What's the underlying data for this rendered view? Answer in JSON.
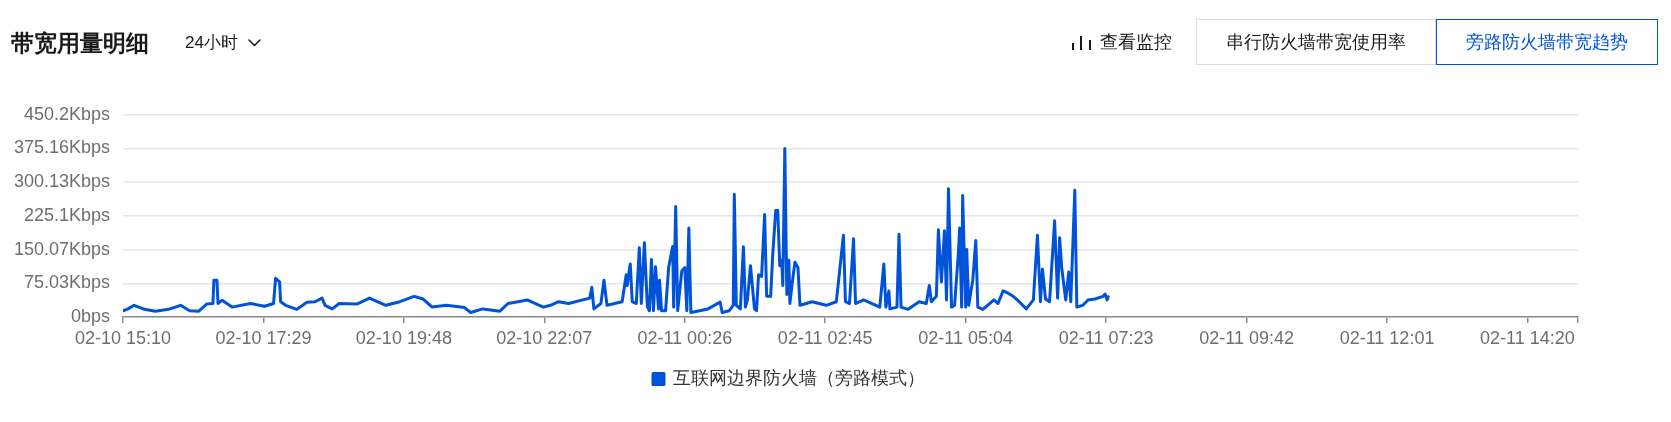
{
  "chart_data": {
    "type": "line",
    "title": "带宽用量明细",
    "annotations": [
      "24小时",
      "查看监控",
      "串行防火墙带宽使用率",
      "旁路防火墙带宽趋势"
    ],
    "x": [
      "--02-10T15:10",
      "--02-10T15:14",
      "--02-10T15:21",
      "--02-10T15:30",
      "--02-10T15:42",
      "--02-10T15:55",
      "--02-10T16:07",
      "--02-10T16:16",
      "--02-10T16:25",
      "--02-10T16:33",
      "--02-10T16:39",
      "--02-10T16:40",
      "--02-10T16:43",
      "--02-10T16:44",
      "--02-10T16:48",
      "--02-10T16:58",
      "--02-10T17:16",
      "--02-10T17:30",
      "--02-10T17:39",
      "--02-10T17:41",
      "--02-10T17:43",
      "--02-10T17:45",
      "--02-10T17:46",
      "--02-10T17:51",
      "--02-10T18:02",
      "--02-10T18:12",
      "--02-10T18:20",
      "--02-10T18:27",
      "--02-10T18:30",
      "--02-10T18:37",
      "--02-10T18:44",
      "--02-10T19:02",
      "--02-10T19:14",
      "--02-10T19:30",
      "--02-10T19:44",
      "--02-10T19:58",
      "--02-10T20:07",
      "--02-10T20:16",
      "--02-10T20:30",
      "--02-10T20:48",
      "--02-10T20:54",
      "--02-10T21:06",
      "--02-10T21:23",
      "--02-10T21:31",
      "--02-10T21:41",
      "--02-10T21:50",
      "--02-10T22:06",
      "--02-10T22:13",
      "--02-10T22:21",
      "--02-10T22:31",
      "--02-10T22:45",
      "--02-10T22:52",
      "--02-10T22:54",
      "--02-10T22:56",
      "--02-10T23:03",
      "--02-10T23:06",
      "--02-10T23:09",
      "--02-10T23:24",
      "--02-10T23:28",
      "--02-10T23:29",
      "--02-10T23:32",
      "--02-10T23:34",
      "--02-10T23:38",
      "--02-10T23:41",
      "--02-10T23:43",
      "--02-10T23:46",
      "--02-10T23:49",
      "--02-10T23:51",
      "--02-10T23:53",
      "--02-10T23:55",
      "--02-10T23:57",
      "--02-11T00:00",
      "--02-11T00:01",
      "--02-11T00:03",
      "--02-11T00:07",
      "--02-11T00:10",
      "--02-11T00:14",
      "--02-11T00:15",
      "--02-11T00:17",
      "--02-11T00:19",
      "--02-11T00:23",
      "--02-11T00:26",
      "--02-11T00:28",
      "--02-11T00:30",
      "--02-11T00:32",
      "--02-11T00:49",
      "--02-11T01:01",
      "--02-11T01:03",
      "--02-11T01:10",
      "--02-11T01:14",
      "--02-11T01:15",
      "--02-11T01:17",
      "--02-11T01:21",
      "--02-11T01:24",
      "--02-11T01:26",
      "--02-11T01:28",
      "--02-11T01:31",
      "--02-11T01:35",
      "--02-11T01:37",
      "--02-11T01:39",
      "--02-11T01:42",
      "--02-11T01:45",
      "--02-11T01:47",
      "--02-11T01:51",
      "--02-11T01:53",
      "--02-11T01:56",
      "--02-11T01:58",
      "--02-11T02:00",
      "--02-11T02:02",
      "--02-11T02:03",
      "--02-11T02:05",
      "--02-11T02:07",
      "--02-11T02:09",
      "--02-11T02:10",
      "--02-11T02:12",
      "--02-11T02:15",
      "--02-11T02:18",
      "--02-11T02:20",
      "--02-11T02:32",
      "--02-11T02:46",
      "--02-11T02:56",
      "--02-11T03:03",
      "--02-11T03:05",
      "--02-11T03:09",
      "--02-11T03:13",
      "--02-11T03:15",
      "--02-11T03:23",
      "--02-11T03:39",
      "--02-11T03:43",
      "--02-11T03:45",
      "--02-11T03:48",
      "--02-11T03:49",
      "--02-11T03:56",
      "--02-11T03:58",
      "--02-11T04:00",
      "--02-11T04:07",
      "--02-11T04:18",
      "--02-11T04:25",
      "--02-11T04:28",
      "--02-11T04:30",
      "--02-11T04:35",
      "--02-11T04:37",
      "--02-11T04:40",
      "--02-11T04:43",
      "--02-11T04:45",
      "--02-11T04:47",
      "--02-11T04:50",
      "--02-11T04:53",
      "--02-11T04:57",
      "--02-11T04:58",
      "--02-11T05:00",
      "--02-11T05:01",
      "--02-11T05:04",
      "--02-11T05:05",
      "--02-11T05:07",
      "--02-11T05:11",
      "--02-11T05:14",
      "--02-11T05:16",
      "--02-11T05:21",
      "--02-11T05:32",
      "--02-11T05:36",
      "--02-11T05:41",
      "--02-11T05:46",
      "--02-11T05:51",
      "--02-11T05:57",
      "--02-11T06:04",
      "--02-11T06:11",
      "--02-11T06:15",
      "--02-11T06:18",
      "--02-11T06:20",
      "--02-11T06:23",
      "--02-11T06:27",
      "--02-11T06:32",
      "--02-11T06:35",
      "--02-11T06:37",
      "--02-11T06:39",
      "--02-11T06:43",
      "--02-11T06:46",
      "--02-11T06:48",
      "--02-11T06:52",
      "--02-11T06:54",
      "--02-11T07:00",
      "--02-11T07:05",
      "--02-11T07:12",
      "--02-11T07:20",
      "--02-11T07:22",
      "--02-11T07:24",
      "--02-11T07:25"
    ],
    "series": [
      {
        "name": "互联网边界防火墙（旁路模式）",
        "color": "#0052d9",
        "values": [
          14,
          17,
          26,
          18,
          13,
          17,
          26,
          14,
          13,
          29,
          30,
          82,
          82,
          30,
          37,
          22,
          30,
          24,
          30,
          86,
          82,
          78,
          34,
          26,
          17,
          33,
          34,
          42,
          26,
          18,
          30,
          29,
          42,
          26,
          34,
          46,
          40,
          22,
          26,
          21,
          10,
          18,
          13,
          30,
          34,
          38,
          22,
          26,
          34,
          30,
          38,
          42,
          66,
          18,
          30,
          82,
          26,
          34,
          94,
          70,
          118,
          34,
          30,
          154,
          30,
          165,
          22,
          14,
          128,
          14,
          112,
          18,
          82,
          14,
          14,
          110,
          157,
          22,
          246,
          14,
          102,
          110,
          14,
          198,
          10,
          18,
          33,
          10,
          14,
          26,
          273,
          26,
          18,
          156,
          22,
          38,
          114,
          18,
          14,
          94,
          90,
          228,
          46,
          46,
          138,
          237,
          237,
          114,
          126,
          70,
          375,
          50,
          126,
          30,
          70,
          122,
          110,
          26,
          34,
          26,
          34,
          182,
          34,
          30,
          174,
          30,
          38,
          22,
          118,
          22,
          58,
          18,
          22,
          184,
          22,
          17,
          34,
          30,
          70,
          34,
          46,
          194,
          78,
          192,
          38,
          285,
          22,
          26,
          150,
          198,
          22,
          270,
          22,
          150,
          26,
          82,
          170,
          22,
          17,
          38,
          30,
          58,
          53,
          46,
          34,
          18,
          38,
          182,
          34,
          106,
          40,
          34,
          214,
          42,
          176,
          110,
          38,
          100,
          34,
          282,
          22,
          26,
          38,
          40,
          46,
          51,
          38,
          45
        ]
      }
    ],
    "xlim": [
      "--02-10T15:10",
      "--02-11T15:10"
    ],
    "xticks": [
      {
        "value": "--02-10T15:10",
        "label": "02-10 15:10"
      },
      {
        "value": "--02-10T17:29",
        "label": "02-10 17:29"
      },
      {
        "value": "--02-10T19:48",
        "label": "02-10 19:48"
      },
      {
        "value": "--02-10T22:07",
        "label": "02-10 22:07"
      },
      {
        "value": "--02-11T00:26",
        "label": "02-11 00:26"
      },
      {
        "value": "--02-11T02:45",
        "label": "02-11 02:45"
      },
      {
        "value": "--02-11T05:04",
        "label": "02-11 05:04"
      },
      {
        "value": "--02-11T07:23",
        "label": "02-11 07:23"
      },
      {
        "value": "--02-11T09:42",
        "label": "02-11 09:42"
      },
      {
        "value": "--02-11T12:01",
        "label": "02-11 12:01"
      },
      {
        "value": "--02-11T14:20",
        "label": "02-11 14:20"
      },
      {
        "value": "--02-11T15:10",
        "label": null
      }
    ],
    "ylim": [
      0,
      450.2
    ],
    "yticks": [
      {
        "value": 0,
        "label": "0bps"
      },
      {
        "value": 75.03,
        "label": "75.03Kbps"
      },
      {
        "value": 150.07,
        "label": "150.07Kbps"
      },
      {
        "value": 225.1,
        "label": "225.1Kbps"
      },
      {
        "value": 300.13,
        "label": "300.13Kbps"
      },
      {
        "value": 375.16,
        "label": "375.16Kbps"
      },
      {
        "value": 450.2,
        "label": "450.2Kbps"
      }
    ],
    "grid": "y",
    "legend": "bottom"
  }
}
